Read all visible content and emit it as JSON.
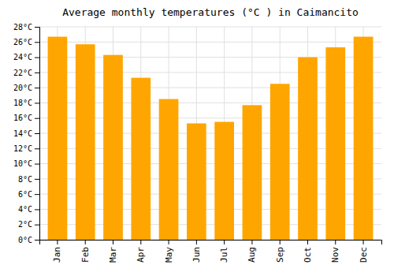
{
  "chart_data": {
    "type": "bar",
    "title": "Average monthly temperatures (°C ) in Caimancito",
    "categories": [
      "Jan",
      "Feb",
      "Mar",
      "Apr",
      "May",
      "Jun",
      "Jul",
      "Aug",
      "Sep",
      "Oct",
      "Nov",
      "Dec"
    ],
    "values": [
      26.7,
      25.7,
      24.3,
      21.3,
      18.5,
      15.3,
      15.5,
      17.7,
      20.5,
      24.0,
      25.3,
      26.7
    ],
    "color": "#FFA500",
    "ylim": [
      0,
      28
    ],
    "yticks": [
      {
        "value": 0,
        "label": "0°C"
      },
      {
        "value": 2,
        "label": "2°C"
      },
      {
        "value": 4,
        "label": "4°C"
      },
      {
        "value": 6,
        "label": "6°C"
      },
      {
        "value": 8,
        "label": "8°C"
      },
      {
        "value": 10,
        "label": "10°C"
      },
      {
        "value": 12,
        "label": "12°C"
      },
      {
        "value": 14,
        "label": "14°C"
      },
      {
        "value": 16,
        "label": "16°C"
      },
      {
        "value": 18,
        "label": "18°C"
      },
      {
        "value": 20,
        "label": "20°C"
      },
      {
        "value": 22,
        "label": "22°C"
      },
      {
        "value": 24,
        "label": "24°C"
      },
      {
        "value": 26,
        "label": "26°C"
      },
      {
        "value": 28,
        "label": "28°C"
      }
    ],
    "grid": true
  }
}
